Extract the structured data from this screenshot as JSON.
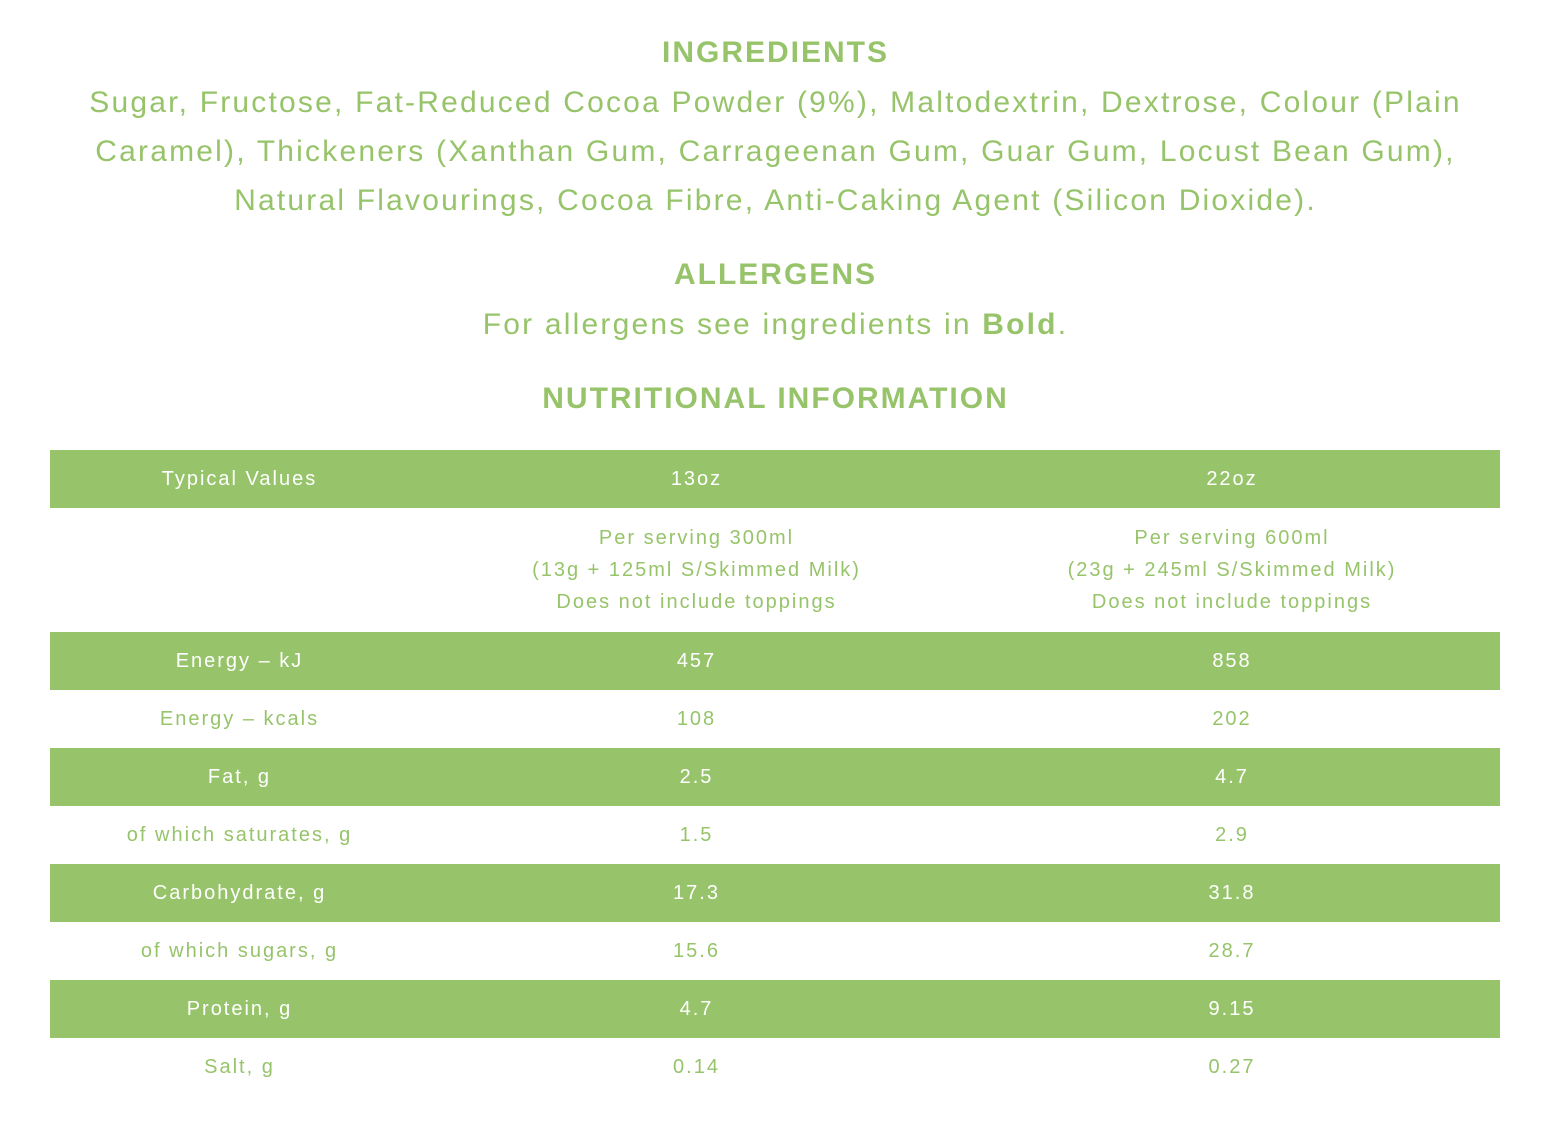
{
  "ingredients": {
    "heading": "INGREDIENTS",
    "text": "Sugar, Fructose, Fat-Reduced Cocoa Powder (9%), Maltodextrin, Dextrose, Colour (Plain Caramel), Thickeners (Xanthan Gum, Carrageenan Gum, Guar Gum, Locust Bean Gum), Natural Flavourings, Cocoa Fibre, Anti-Caking Agent (Silicon Dioxide)."
  },
  "allergens": {
    "heading": "ALLERGENS",
    "text_before": "For allergens see ingredients in ",
    "bold_word": "Bold",
    "text_after": "."
  },
  "nutrition": {
    "heading": "NUTRITIONAL INFORMATION",
    "header": {
      "label": "Typical Values",
      "col1": "13oz",
      "col2": "22oz"
    },
    "serving": {
      "col1": [
        "Per serving 300ml",
        "(13g + 125ml S/Skimmed Milk)",
        "Does not include toppings"
      ],
      "col2": [
        "Per serving 600ml",
        "(23g + 245ml S/Skimmed Milk)",
        "Does not include toppings"
      ]
    },
    "rows": [
      {
        "label": "Energy – kJ",
        "col1": "457",
        "col2": "858"
      },
      {
        "label": "Energy – kcals",
        "col1": "108",
        "col2": "202"
      },
      {
        "label": "Fat, g",
        "col1": "2.5",
        "col2": "4.7"
      },
      {
        "label": "of which saturates, g",
        "col1": "1.5",
        "col2": "2.9"
      },
      {
        "label": "Carbohydrate, g",
        "col1": "17.3",
        "col2": "31.8"
      },
      {
        "label": "of which sugars, g",
        "col1": "15.6",
        "col2": "28.7"
      },
      {
        "label": "Protein, g",
        "col1": "4.7",
        "col2": "9.15"
      },
      {
        "label": "Salt, g",
        "col1": "0.14",
        "col2": "0.27"
      }
    ]
  },
  "colors": {
    "accent": "#97c46a",
    "text_on_accent": "#ffffff"
  }
}
